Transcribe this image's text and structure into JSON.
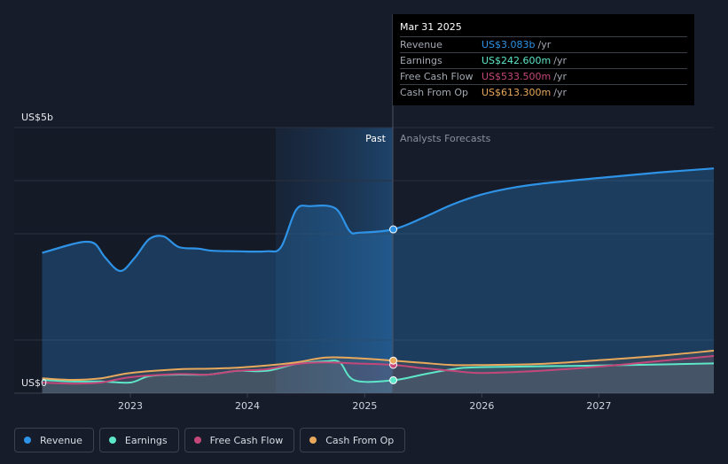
{
  "chart_data": {
    "type": "area",
    "y_unit_label": "US$5b",
    "y_zero_label": "US$0",
    "ylim": [
      0,
      5
    ],
    "x_ticks": [
      "2023",
      "2024",
      "2025",
      "2026",
      "2027"
    ],
    "past_label": "Past",
    "forecast_label": "Analysts Forecasts",
    "past_end": "2025-03-31",
    "series": [
      {
        "name": "Revenue",
        "color": "#2e93e6",
        "points": [
          [
            "2022-04-01",
            2.64
          ],
          [
            "2022-07-01",
            2.8
          ],
          [
            "2022-08-15",
            2.85
          ],
          [
            "2022-09-15",
            2.8
          ],
          [
            "2022-10-15",
            2.55
          ],
          [
            "2022-12-01",
            2.3
          ],
          [
            "2023-01-15",
            2.55
          ],
          [
            "2023-03-01",
            2.9
          ],
          [
            "2023-04-15",
            2.95
          ],
          [
            "2023-06-01",
            2.75
          ],
          [
            "2023-08-01",
            2.72
          ],
          [
            "2023-09-15",
            2.68
          ],
          [
            "2023-12-01",
            2.67
          ],
          [
            "2024-03-01",
            2.67
          ],
          [
            "2024-04-15",
            2.75
          ],
          [
            "2024-06-01",
            3.45
          ],
          [
            "2024-07-15",
            3.52
          ],
          [
            "2024-10-01",
            3.48
          ],
          [
            "2024-11-15",
            3.05
          ],
          [
            "2024-12-15",
            3.02
          ],
          [
            "2025-03-31",
            3.083
          ],
          [
            "2025-07-01",
            3.3
          ],
          [
            "2025-10-01",
            3.55
          ],
          [
            "2026-01-01",
            3.74
          ],
          [
            "2026-04-01",
            3.86
          ],
          [
            "2026-07-01",
            3.94
          ],
          [
            "2027-01-01",
            4.05
          ],
          [
            "2027-07-01",
            4.15
          ],
          [
            "2028-01-01",
            4.23
          ]
        ]
      },
      {
        "name": "Earnings",
        "color": "#5ee6c8",
        "points": [
          [
            "2022-04-01",
            0.25
          ],
          [
            "2022-07-01",
            0.22
          ],
          [
            "2022-10-01",
            0.22
          ],
          [
            "2023-01-01",
            0.2
          ],
          [
            "2023-03-01",
            0.32
          ],
          [
            "2023-06-01",
            0.35
          ],
          [
            "2023-09-01",
            0.35
          ],
          [
            "2023-12-01",
            0.42
          ],
          [
            "2024-03-01",
            0.42
          ],
          [
            "2024-06-01",
            0.55
          ],
          [
            "2024-09-01",
            0.6
          ],
          [
            "2024-10-15",
            0.58
          ],
          [
            "2024-12-01",
            0.24
          ],
          [
            "2025-03-31",
            0.243
          ],
          [
            "2025-07-01",
            0.35
          ],
          [
            "2025-10-01",
            0.45
          ],
          [
            "2026-01-01",
            0.49
          ],
          [
            "2027-01-01",
            0.52
          ],
          [
            "2028-01-01",
            0.56
          ]
        ]
      },
      {
        "name": "Free Cash Flow",
        "color": "#c4477a",
        "points": [
          [
            "2022-04-01",
            0.2
          ],
          [
            "2022-07-01",
            0.18
          ],
          [
            "2022-10-01",
            0.2
          ],
          [
            "2023-01-01",
            0.3
          ],
          [
            "2023-06-01",
            0.36
          ],
          [
            "2023-09-01",
            0.35
          ],
          [
            "2023-12-01",
            0.42
          ],
          [
            "2024-03-01",
            0.45
          ],
          [
            "2024-06-01",
            0.55
          ],
          [
            "2024-09-01",
            0.58
          ],
          [
            "2024-12-01",
            0.56
          ],
          [
            "2025-03-31",
            0.5335
          ],
          [
            "2025-07-01",
            0.47
          ],
          [
            "2025-10-01",
            0.42
          ],
          [
            "2026-01-01",
            0.38
          ],
          [
            "2026-07-01",
            0.42
          ],
          [
            "2027-01-01",
            0.5
          ],
          [
            "2027-07-01",
            0.6
          ],
          [
            "2028-01-01",
            0.7
          ]
        ]
      },
      {
        "name": "Cash From Op",
        "color": "#e8a95c",
        "points": [
          [
            "2022-04-01",
            0.28
          ],
          [
            "2022-07-01",
            0.25
          ],
          [
            "2022-10-01",
            0.28
          ],
          [
            "2023-01-01",
            0.38
          ],
          [
            "2023-06-01",
            0.45
          ],
          [
            "2023-09-01",
            0.46
          ],
          [
            "2023-12-01",
            0.48
          ],
          [
            "2024-03-01",
            0.52
          ],
          [
            "2024-06-01",
            0.58
          ],
          [
            "2024-09-01",
            0.67
          ],
          [
            "2024-12-01",
            0.66
          ],
          [
            "2025-03-31",
            0.6133
          ],
          [
            "2025-07-01",
            0.57
          ],
          [
            "2025-10-01",
            0.53
          ],
          [
            "2026-01-01",
            0.53
          ],
          [
            "2026-07-01",
            0.55
          ],
          [
            "2027-01-01",
            0.62
          ],
          [
            "2027-07-01",
            0.7
          ],
          [
            "2028-01-01",
            0.8
          ]
        ]
      }
    ]
  },
  "tooltip": {
    "date": "Mar 31 2025",
    "rows": [
      {
        "label": "Revenue",
        "value": "US$3.083b",
        "unit": "/yr",
        "color": "#2e93e6"
      },
      {
        "label": "Earnings",
        "value": "US$242.600m",
        "unit": "/yr",
        "color": "#5ee6c8"
      },
      {
        "label": "Free Cash Flow",
        "value": "US$533.500m",
        "unit": "/yr",
        "color": "#c4477a"
      },
      {
        "label": "Cash From Op",
        "value": "US$613.300m",
        "unit": "/yr",
        "color": "#e8a95c"
      }
    ]
  },
  "legend": [
    {
      "label": "Revenue",
      "color": "#2e93e6"
    },
    {
      "label": "Earnings",
      "color": "#5ee6c8"
    },
    {
      "label": "Free Cash Flow",
      "color": "#c4477a"
    },
    {
      "label": "Cash From Op",
      "color": "#e8a95c"
    }
  ]
}
